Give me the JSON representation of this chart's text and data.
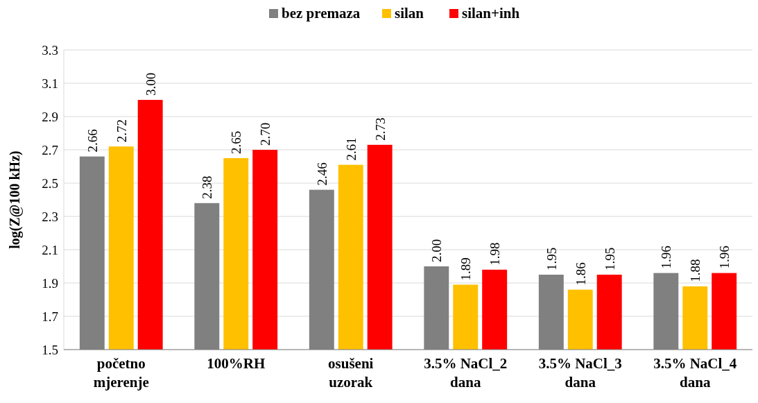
{
  "chart_data": {
    "type": "bar",
    "ylabel": "log(Z@100 kHz)",
    "categories": [
      "početno mjerenje",
      "100%RH",
      "osušeni uzorak",
      "3.5% NaCl_2 dana",
      "3.5% NaCl_3 dana",
      "3.5% NaCl_4 dana"
    ],
    "series": [
      {
        "name": "bez premaza",
        "color": "#808080",
        "values": [
          2.66,
          2.38,
          2.46,
          2.0,
          1.95,
          1.96
        ],
        "value_labels": [
          "2.66",
          "2.38",
          "2.46",
          "2.00",
          "1.95",
          "1.96"
        ]
      },
      {
        "name": "silan",
        "color": "#ffc000",
        "values": [
          2.72,
          2.65,
          2.61,
          1.89,
          1.86,
          1.88
        ],
        "value_labels": [
          "2.72",
          "2.65",
          "2.61",
          "1.89",
          "1.86",
          "1.88"
        ]
      },
      {
        "name": "silan+inh",
        "color": "#ff0000",
        "values": [
          3.0,
          2.7,
          2.73,
          1.98,
          1.95,
          1.96
        ],
        "value_labels": [
          "3.00",
          "2.70",
          "2.73",
          "1.98",
          "1.95",
          "1.96"
        ]
      }
    ],
    "ylim": [
      1.5,
      3.3
    ],
    "yticks": [
      {
        "value": 1.5,
        "label": "1.5"
      },
      {
        "value": 1.7,
        "label": "1.7"
      },
      {
        "value": 1.9,
        "label": "1.9"
      },
      {
        "value": 2.1,
        "label": "2.1"
      },
      {
        "value": 2.3,
        "label": "2.3"
      },
      {
        "value": 2.5,
        "label": "2.5"
      },
      {
        "value": 2.7,
        "label": "2.7"
      },
      {
        "value": 2.9,
        "label": "2.9"
      },
      {
        "value": 3.1,
        "label": "3.1"
      },
      {
        "value": 3.3,
        "label": "3.3"
      }
    ],
    "grid": "y",
    "legend": "top"
  }
}
